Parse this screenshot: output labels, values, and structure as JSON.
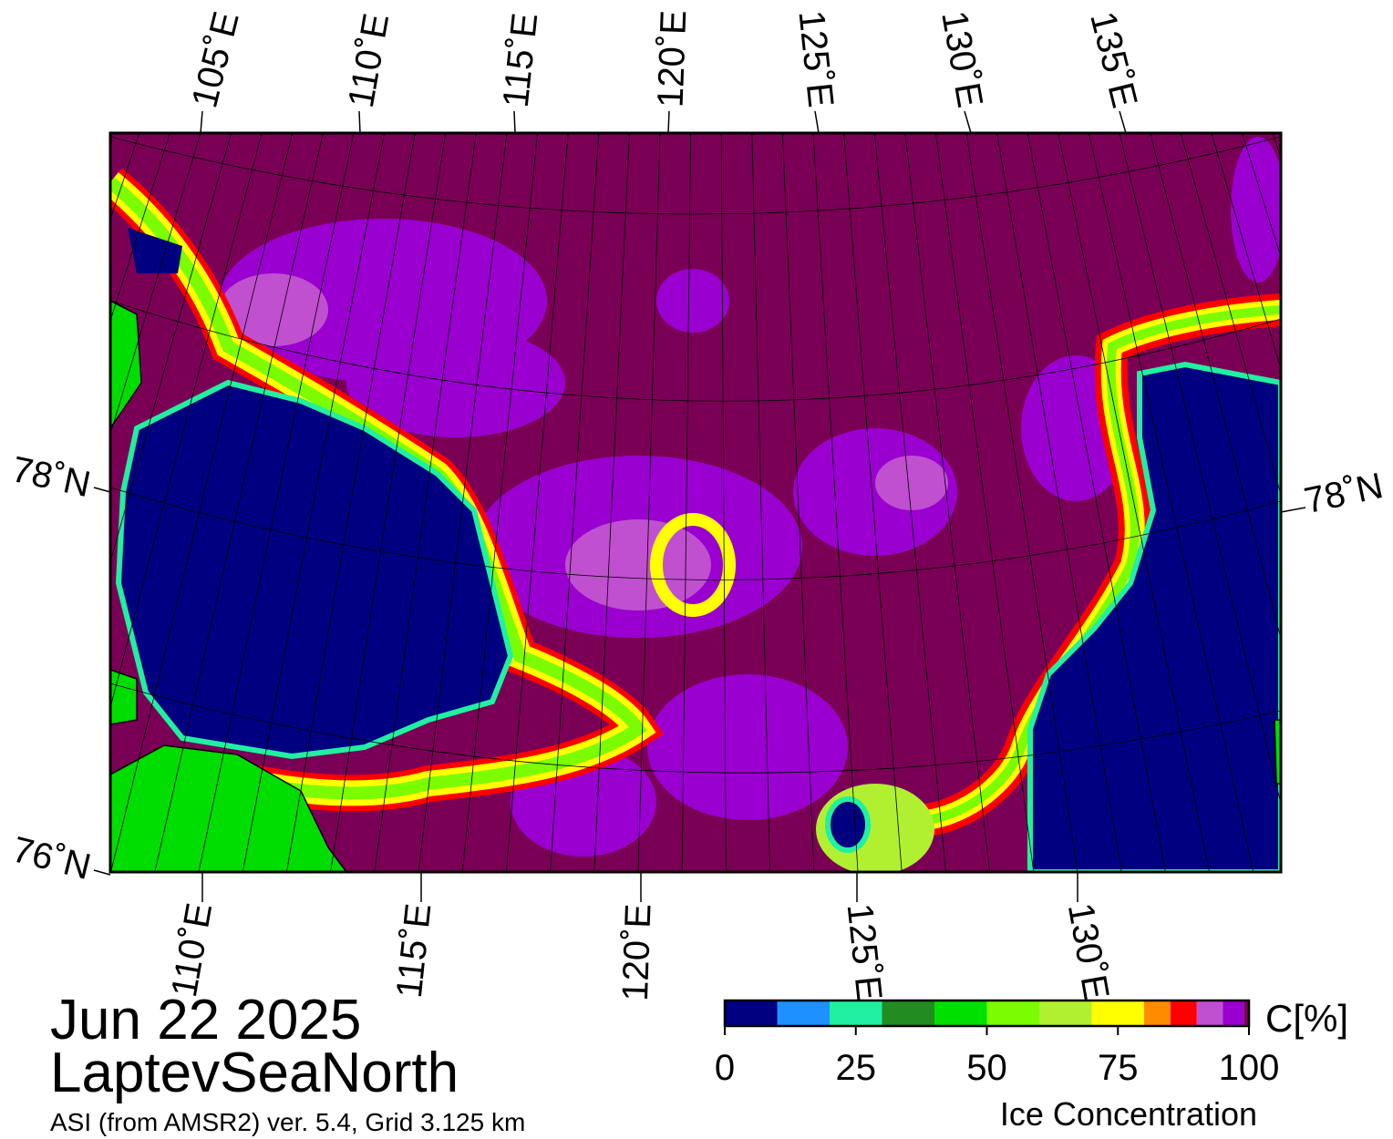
{
  "date": "Jun 22 2025",
  "region": "LaptevSeaNorth",
  "source": "ASI (from AMSR2) ver. 5.4,  Grid 3.125 km",
  "map": {
    "top_lon_labels": [
      "105˚E",
      "110˚E",
      "115˚E",
      "120˚E",
      "125˚E",
      "130˚E",
      "135˚E"
    ],
    "bottom_lon_labels": [
      "110˚E",
      "115˚E",
      "120˚E",
      "125˚E",
      "130˚E"
    ],
    "left_lat_labels": [
      "78˚N",
      "76˚N"
    ],
    "right_lat_labels": [
      "78˚N"
    ]
  },
  "colorbar": {
    "label": "Ice Concentration",
    "unit": "C[%]",
    "bounds": [
      0,
      10,
      20,
      30,
      40,
      50,
      60,
      70,
      80,
      85,
      90,
      95,
      99,
      100
    ],
    "colors": [
      "#000080",
      "#1e90ff",
      "#20f0a0",
      "#228b22",
      "#00e000",
      "#7cfc00",
      "#b0f030",
      "#ffff00",
      "#ff8c00",
      "#ff0000",
      "#c050d0",
      "#9a00d0",
      "#7a0055"
    ],
    "xlim": [
      0,
      100
    ],
    "xticks": [
      0,
      25,
      50,
      75,
      100
    ]
  }
}
